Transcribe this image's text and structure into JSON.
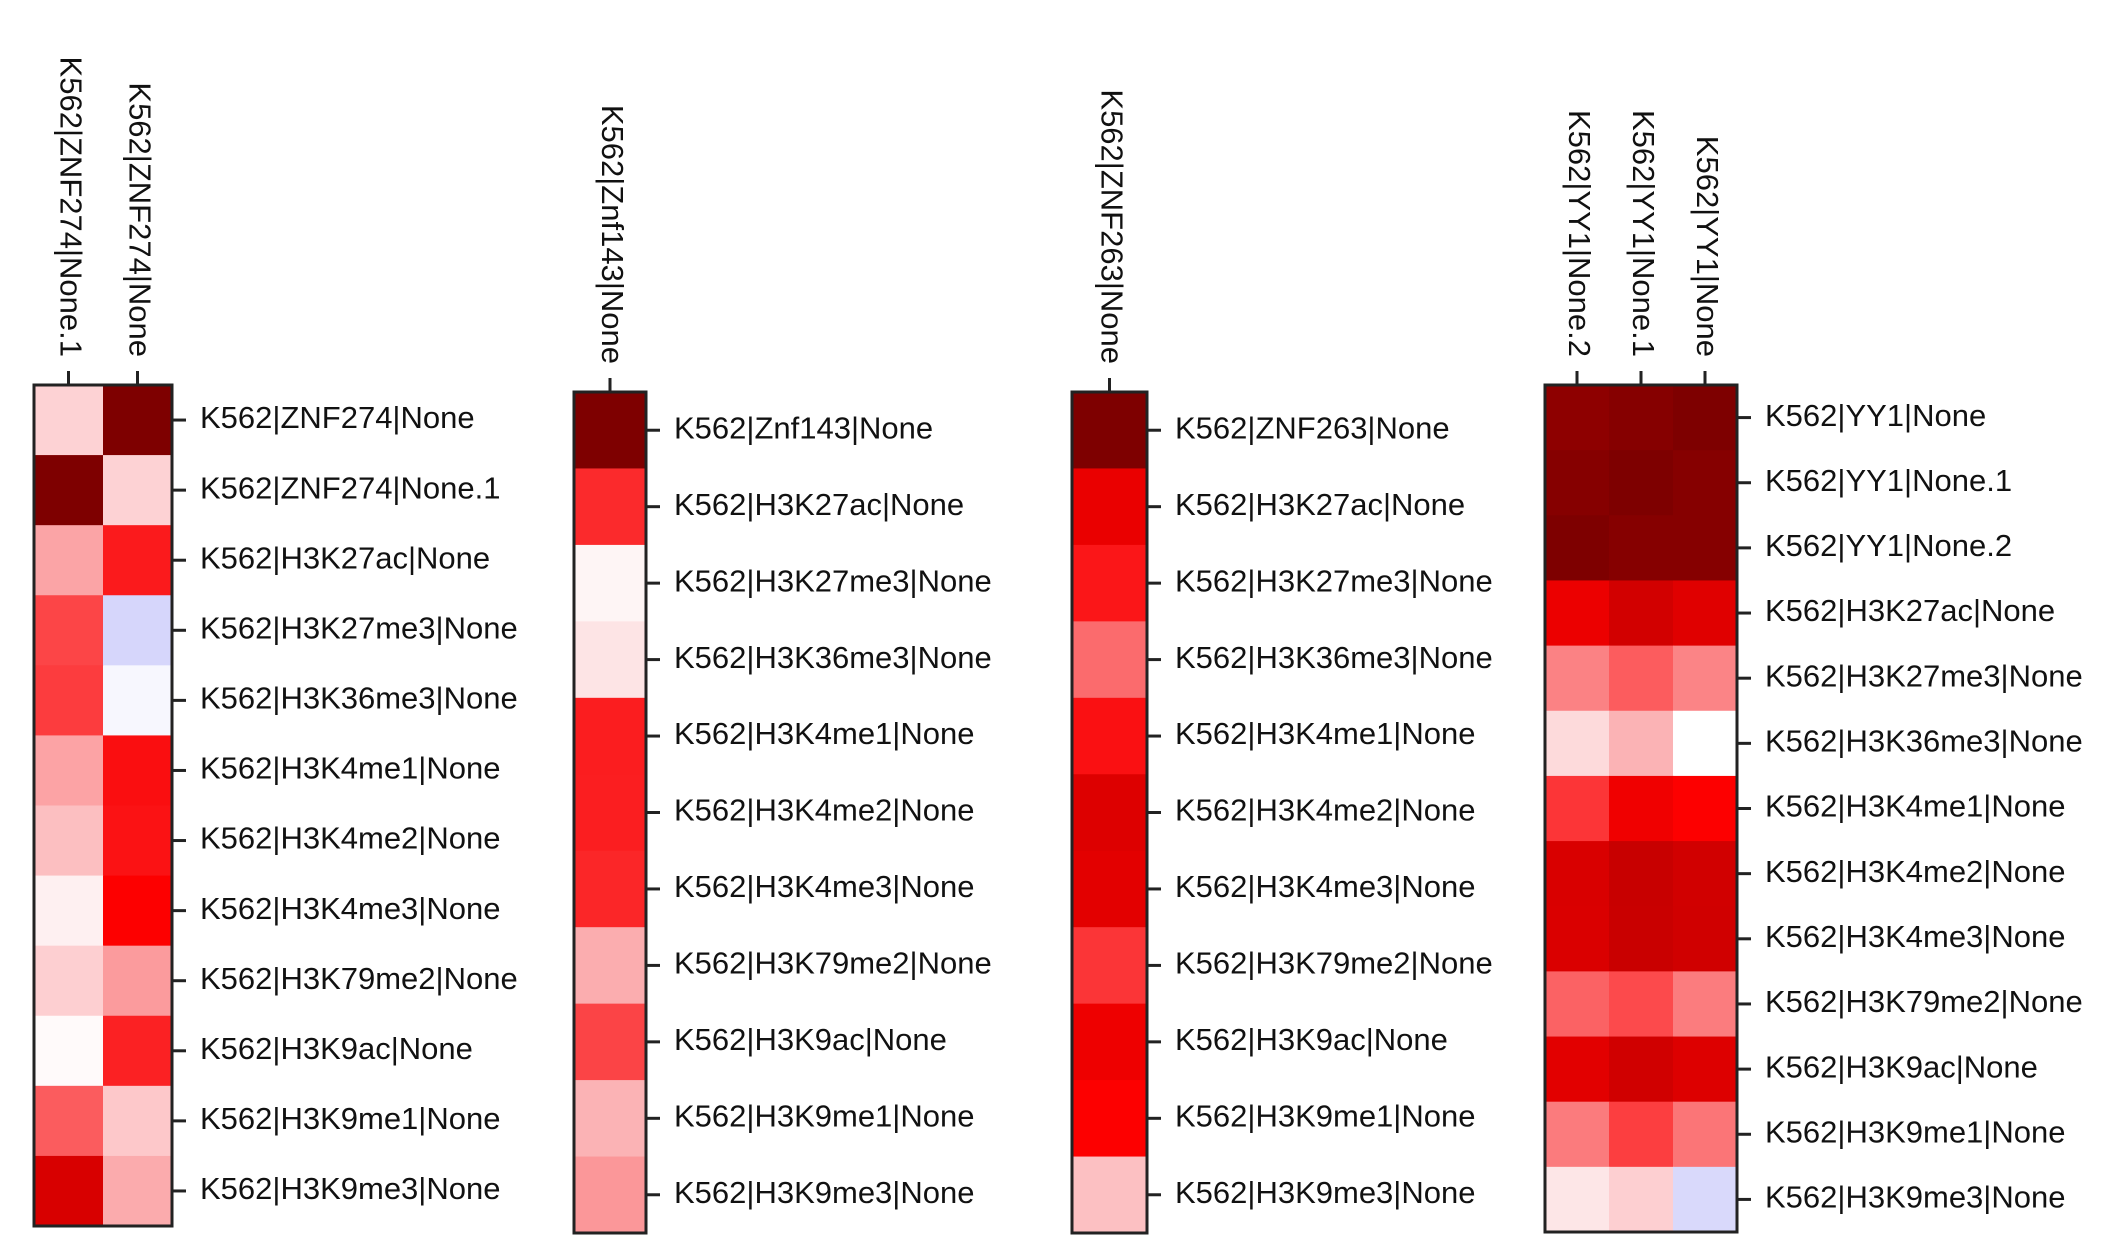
{
  "chart_data": [
    {
      "type": "heatmap",
      "columns": [
        "K562|ZNF274|None.1",
        "K562|ZNF274|None"
      ],
      "rows": [
        "K562|ZNF274|None",
        "K562|ZNF274|None.1",
        "K562|H3K27ac|None",
        "K562|H3K27me3|None",
        "K562|H3K36me3|None",
        "K562|H3K4me1|None",
        "K562|H3K4me2|None",
        "K562|H3K4me3|None",
        "K562|H3K79me2|None",
        "K562|H3K9ac|None",
        "K562|H3K9me1|None",
        "K562|H3K9me3|None"
      ],
      "colors": [
        [
          "#fdd2d4",
          "#7e0000"
        ],
        [
          "#7e0000",
          "#fdd2d4"
        ],
        [
          "#fba4a6",
          "#fb1a1c"
        ],
        [
          "#fc4547",
          "#d6d6fb"
        ],
        [
          "#fc3c3e",
          "#f7f7fe"
        ],
        [
          "#fca3a5",
          "#fa0e10"
        ],
        [
          "#fcbfc1",
          "#fb1214"
        ],
        [
          "#fef0f1",
          "#fd0000"
        ],
        [
          "#fdcfd1",
          "#fb9b9d"
        ],
        [
          "#fffafa",
          "#fb2123"
        ],
        [
          "#fb5c5e",
          "#fdc8ca"
        ],
        [
          "#d80000",
          "#fbabad"
        ]
      ]
    },
    {
      "type": "heatmap",
      "columns": [
        "K562|Znf143|None"
      ],
      "rows": [
        "K562|Znf143|None",
        "K562|H3K27ac|None",
        "K562|H3K27me3|None",
        "K562|H3K36me3|None",
        "K562|H3K4me1|None",
        "K562|H3K4me2|None",
        "K562|H3K4me3|None",
        "K562|H3K79me2|None",
        "K562|H3K9ac|None",
        "K562|H3K9me1|None",
        "K562|H3K9me3|None"
      ],
      "colors": [
        [
          "#7e0000"
        ],
        [
          "#fb2a2c"
        ],
        [
          "#fef5f5"
        ],
        [
          "#fde4e5"
        ],
        [
          "#fb1d1f"
        ],
        [
          "#fb1e20"
        ],
        [
          "#fb2628"
        ],
        [
          "#fbadaf"
        ],
        [
          "#fb4446"
        ],
        [
          "#fbb3b5"
        ],
        [
          "#fb9799"
        ]
      ]
    },
    {
      "type": "heatmap",
      "columns": [
        "K562|ZNF263|None"
      ],
      "rows": [
        "K562|ZNF263|None",
        "K562|H3K27ac|None",
        "K562|H3K27me3|None",
        "K562|H3K36me3|None",
        "K562|H3K4me1|None",
        "K562|H3K4me2|None",
        "K562|H3K4me3|None",
        "K562|H3K79me2|None",
        "K562|H3K9ac|None",
        "K562|H3K9me1|None",
        "K562|H3K9me3|None"
      ],
      "colors": [
        [
          "#7e0000"
        ],
        [
          "#ea0000"
        ],
        [
          "#fb1618"
        ],
        [
          "#fb6b6d"
        ],
        [
          "#fa1012"
        ],
        [
          "#dd0000"
        ],
        [
          "#e30000"
        ],
        [
          "#fb3537"
        ],
        [
          "#ee0000"
        ],
        [
          "#fd0000"
        ],
        [
          "#fcc0c2"
        ]
      ]
    },
    {
      "type": "heatmap",
      "columns": [
        "K562|YY1|None.2",
        "K562|YY1|None.1",
        "K562|YY1|None"
      ],
      "rows": [
        "K562|YY1|None",
        "K562|YY1|None.1",
        "K562|YY1|None.2",
        "K562|H3K27ac|None",
        "K562|H3K27me3|None",
        "K562|H3K36me3|None",
        "K562|H3K4me1|None",
        "K562|H3K4me2|None",
        "K562|H3K4me3|None",
        "K562|H3K79me2|None",
        "K562|H3K9ac|None",
        "K562|H3K9me1|None",
        "K562|H3K9me3|None"
      ],
      "colors": [
        [
          "#8e0000",
          "#860000",
          "#7e0000"
        ],
        [
          "#860000",
          "#7e0000",
          "#860000"
        ],
        [
          "#7e0000",
          "#860000",
          "#860000"
        ],
        [
          "#ec0000",
          "#d20000",
          "#e00000"
        ],
        [
          "#fb8284",
          "#fc5c5e",
          "#fb8486"
        ],
        [
          "#fddadb",
          "#fbb3b5",
          "#ffffff"
        ],
        [
          "#fc3537",
          "#f00000",
          "#fd0000"
        ],
        [
          "#d90000",
          "#c80000",
          "#d10000"
        ],
        [
          "#da0000",
          "#c90000",
          "#d00000"
        ],
        [
          "#fb6264",
          "#fc4a4c",
          "#fb7c7e"
        ],
        [
          "#e20000",
          "#d00000",
          "#dd0000"
        ],
        [
          "#fb7b7d",
          "#fc3e40",
          "#fb7577"
        ],
        [
          "#fde6e7",
          "#fdcfd1",
          "#d9d9fb"
        ]
      ]
    }
  ]
}
